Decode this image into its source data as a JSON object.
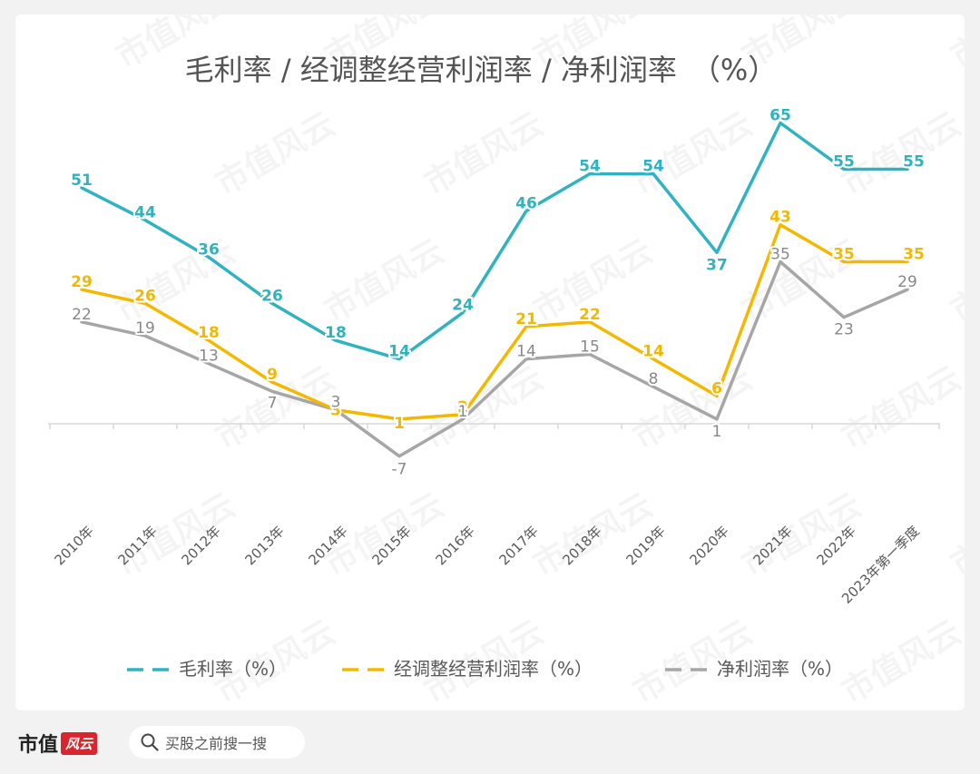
{
  "chart_data": {
    "type": "line",
    "title": "毛利率 / 经调整经营利润率 / 净利润率　（%）",
    "categories": [
      "2010年",
      "2011年",
      "2012年",
      "2013年",
      "2014年",
      "2015年",
      "2016年",
      "2017年",
      "2018年",
      "2019年",
      "2020年",
      "2021年",
      "2022年",
      "2023年第一季度"
    ],
    "series": [
      {
        "name": "毛利率（%）",
        "color": "#2fb3c0",
        "values": [
          51,
          44,
          36,
          26,
          18,
          14,
          24,
          46,
          54,
          54,
          37,
          65,
          55,
          55
        ]
      },
      {
        "name": "经调整经营利润率（%）",
        "color": "#f5b800",
        "values": [
          29,
          26,
          18,
          9,
          3,
          1,
          2,
          21,
          22,
          14,
          6,
          43,
          35,
          35
        ]
      },
      {
        "name": "净利润率（%）",
        "color": "#a6a6a6",
        "values": [
          22,
          19,
          13,
          7,
          3,
          -7,
          1,
          14,
          15,
          8,
          1,
          35,
          23,
          29
        ]
      }
    ],
    "legend_position": "bottom",
    "grid": false
  },
  "watermark": "市值风云",
  "footer": {
    "brand": "市值",
    "brand_stamp": "风云",
    "search_placeholder": "买股之前搜一搜"
  }
}
